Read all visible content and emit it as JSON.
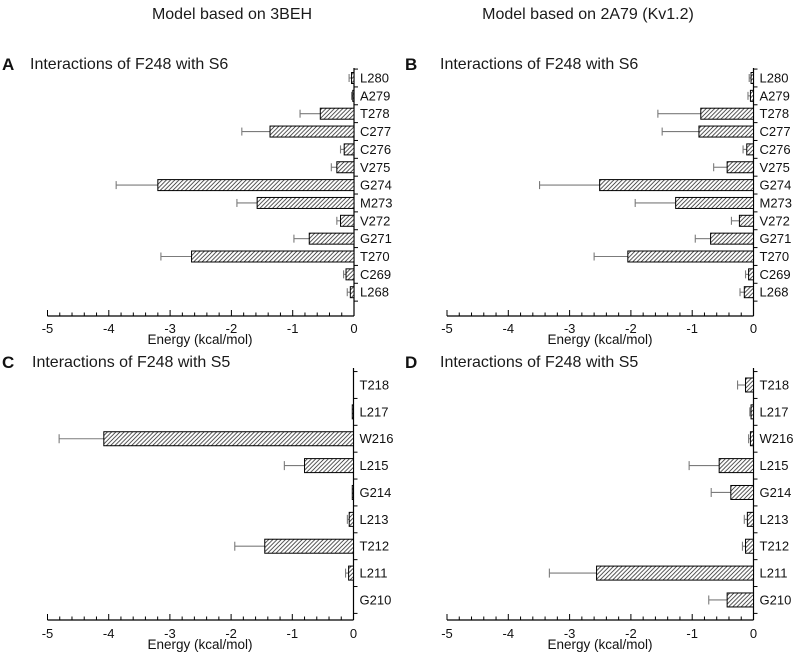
{
  "column_titles": {
    "left": "Model based on 3BEH",
    "right": "Model based on 2A79 (Kv1.2)"
  },
  "axis": {
    "label": "Energy (kcal/mol)",
    "ticks": [
      "-5",
      "-4",
      "-3",
      "-2",
      "-1",
      "0"
    ],
    "xlim": [
      -5,
      0
    ],
    "minor_step": 0.2
  },
  "chart_data": [
    {
      "type": "bar",
      "panel": "A",
      "title": "Interactions of F248 with S6",
      "orientation": "horizontal",
      "xlabel": "Energy (kcal/mol)",
      "xlim": [
        -5,
        0
      ],
      "bar_style": "diagonal-hatch",
      "categories": [
        "L280",
        "A279",
        "T278",
        "C277",
        "C276",
        "V275",
        "G274",
        "M273",
        "V272",
        "G271",
        "T270",
        "C269",
        "L268"
      ],
      "values": [
        -0.04,
        -0.02,
        -0.55,
        -1.37,
        -0.16,
        -0.28,
        -3.2,
        -1.58,
        -0.22,
        -0.73,
        -2.65,
        -0.13,
        -0.06
      ],
      "errors": [
        0.04,
        0.02,
        0.33,
        0.46,
        0.06,
        0.09,
        0.68,
        0.33,
        0.06,
        0.25,
        0.5,
        0.04,
        0.05
      ]
    },
    {
      "type": "bar",
      "panel": "B",
      "title": "Interactions of F248 with S6",
      "orientation": "horizontal",
      "xlabel": "Energy (kcal/mol)",
      "xlim": [
        -5,
        0
      ],
      "bar_style": "diagonal-hatch",
      "categories": [
        "L280",
        "A279",
        "T278",
        "C277",
        "C276",
        "V275",
        "G274",
        "M273",
        "V272",
        "G271",
        "T270",
        "C269",
        "L268"
      ],
      "values": [
        -0.04,
        -0.05,
        -0.86,
        -0.89,
        -0.11,
        -0.43,
        -2.51,
        -1.27,
        -0.23,
        -0.7,
        -2.05,
        -0.08,
        -0.15
      ],
      "errors": [
        0.03,
        0.04,
        0.7,
        0.6,
        0.06,
        0.22,
        0.98,
        0.66,
        0.13,
        0.25,
        0.55,
        0.05,
        0.07
      ]
    },
    {
      "type": "bar",
      "panel": "C",
      "title": "Interactions of F248 with S5",
      "orientation": "horizontal",
      "xlabel": "Energy (kcal/mol)",
      "xlim": [
        -5,
        0
      ],
      "bar_style": "diagonal-hatch",
      "categories": [
        "T218",
        "L217",
        "W216",
        "L215",
        "G214",
        "L213",
        "T212",
        "L211",
        "G210"
      ],
      "values": [
        0,
        -0.02,
        -4.08,
        -0.8,
        -0.02,
        -0.07,
        -1.45,
        -0.08,
        0
      ],
      "errors": [
        0,
        0,
        0.73,
        0.33,
        0,
        0.03,
        0.49,
        0.05,
        0
      ]
    },
    {
      "type": "bar",
      "panel": "D",
      "title": "Interactions of F248 with S5",
      "orientation": "horizontal",
      "xlabel": "Energy (kcal/mol)",
      "xlim": [
        -5,
        0
      ],
      "bar_style": "diagonal-hatch",
      "categories": [
        "T218",
        "L217",
        "W216",
        "L215",
        "G214",
        "L213",
        "T212",
        "L211",
        "G210"
      ],
      "values": [
        -0.13,
        -0.04,
        -0.05,
        -0.56,
        -0.37,
        -0.1,
        -0.13,
        -2.56,
        -0.43
      ],
      "errors": [
        0.13,
        0.02,
        0.03,
        0.49,
        0.32,
        0.05,
        0.05,
        0.77,
        0.3
      ]
    }
  ]
}
